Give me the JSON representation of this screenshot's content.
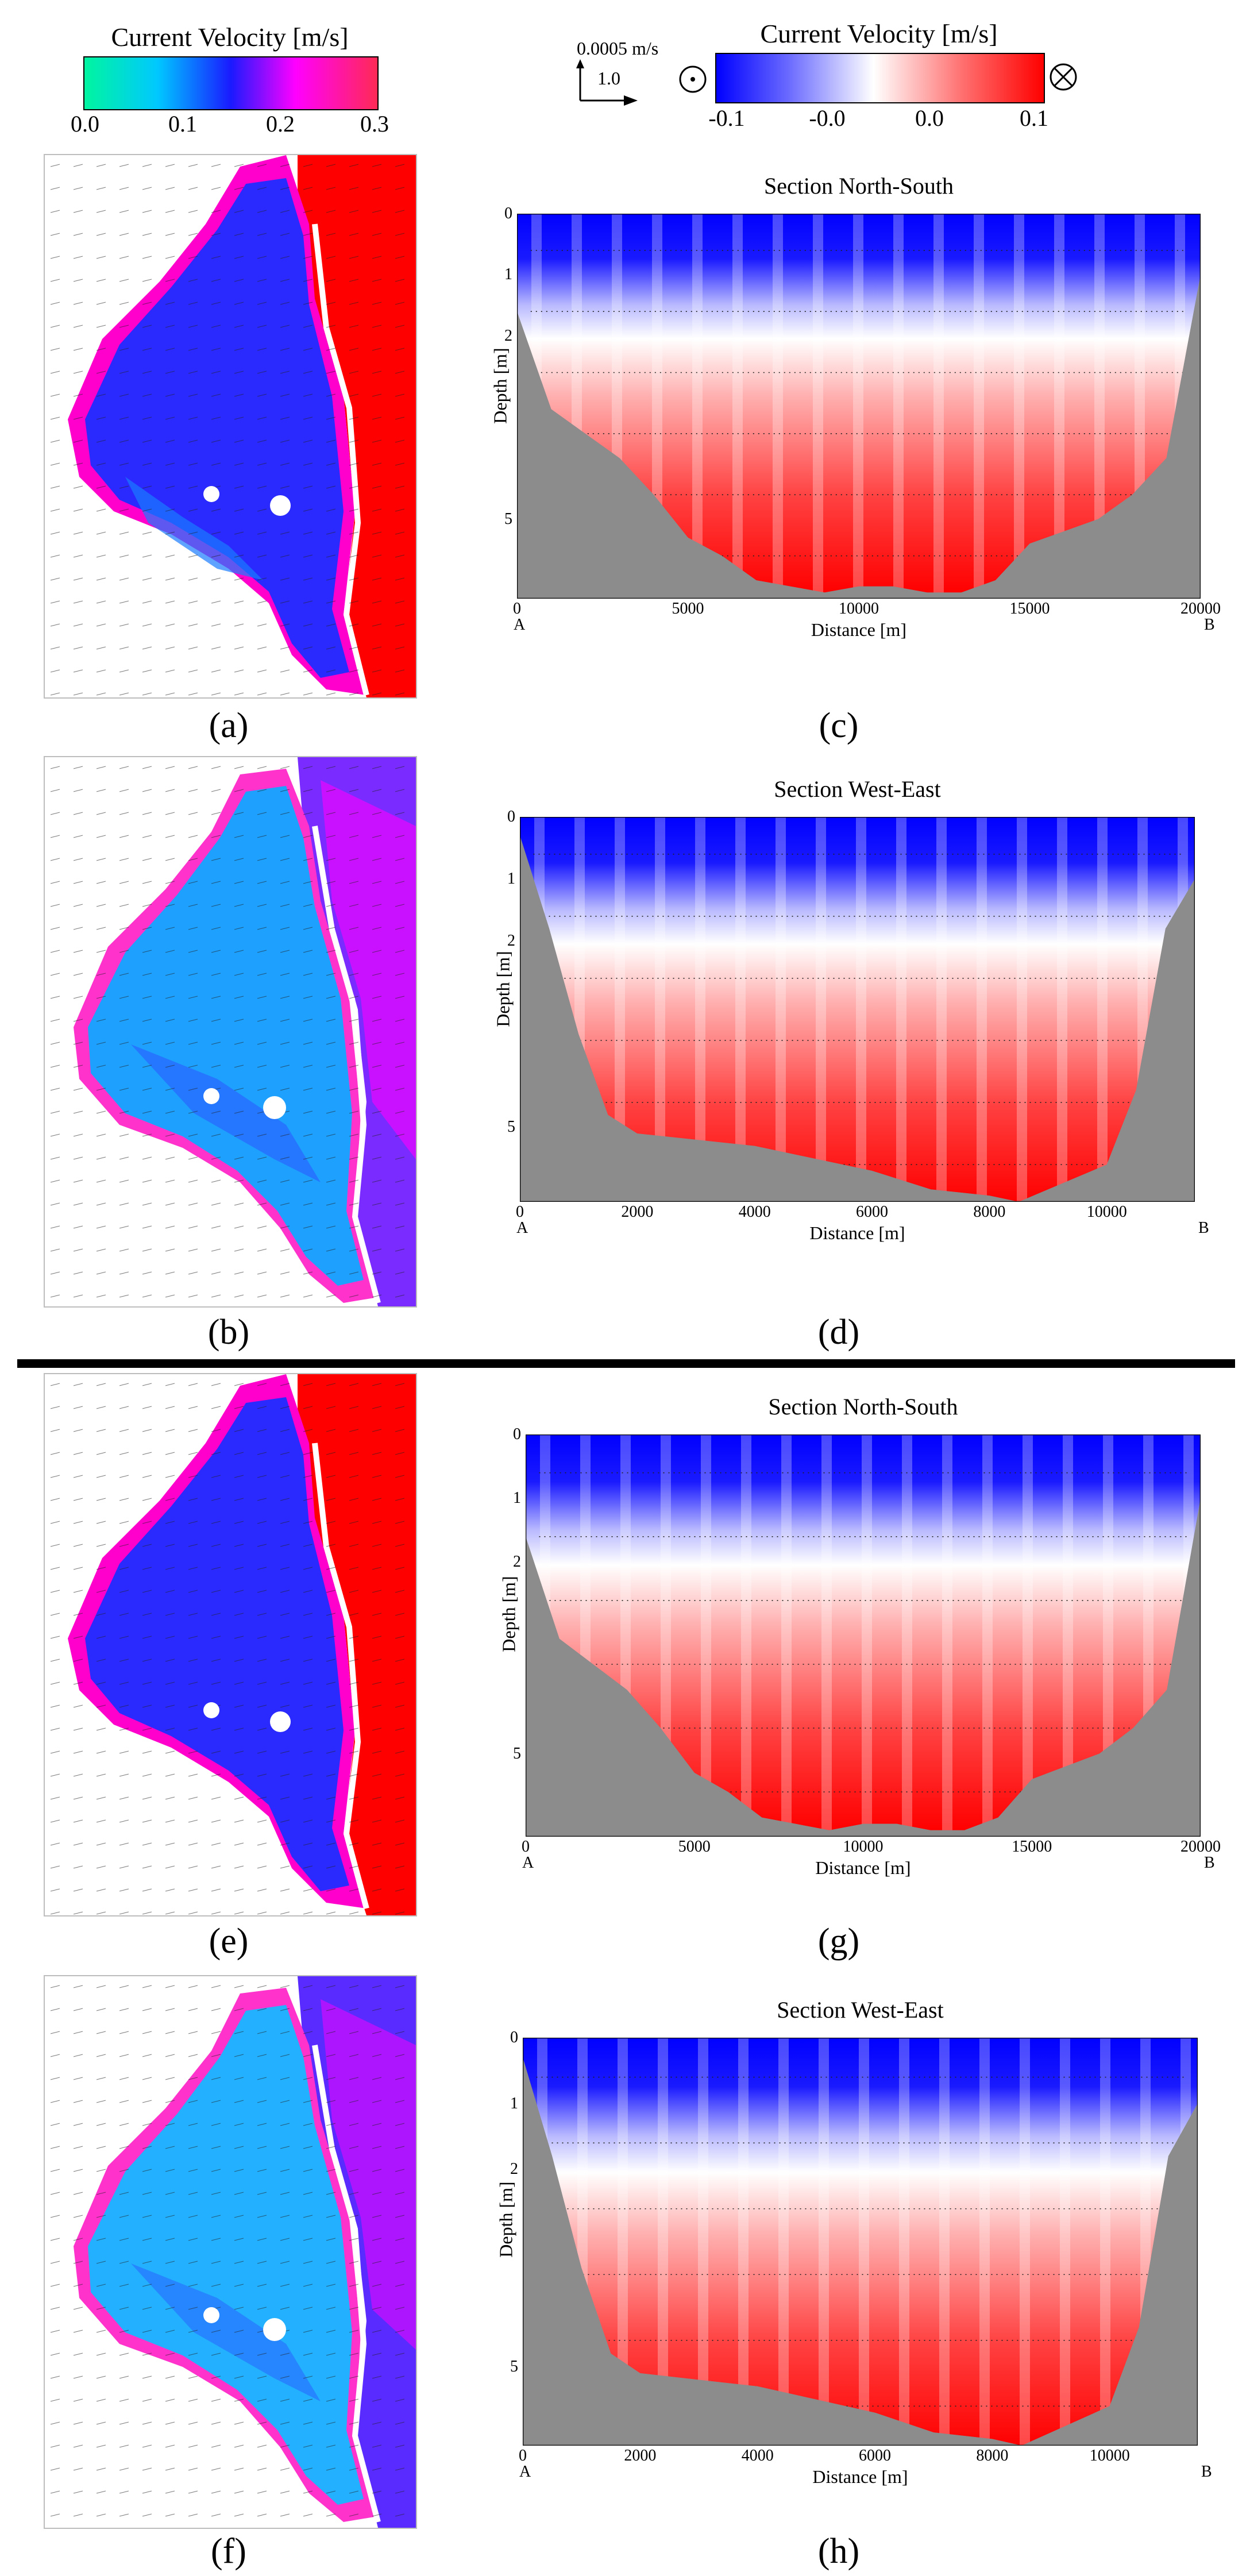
{
  "legend_left": {
    "title": "Current Velocity [m/s]",
    "ticks": [
      "0.0",
      "0.1",
      "0.2",
      "0.3"
    ],
    "colors": [
      "#00f5a0",
      "#00c8ff",
      "#1a1aff",
      "#ff00ff",
      "#ff2a55"
    ]
  },
  "legend_right": {
    "title": "Current Velocity [m/s]",
    "ticks": [
      "-0.1",
      "-0.0",
      "0.0",
      "0.1"
    ],
    "colors": [
      "#0000ff",
      "#ffffff",
      "#ff0000"
    ],
    "out_of_page_icon": "dot-circle-icon",
    "into_page_icon": "cross-circle-icon"
  },
  "vector_scale": {
    "horizontal": "0.0005",
    "unit": "m/s",
    "vertical": "1.0"
  },
  "panel_labels": {
    "a": "(a)",
    "b": "(b)",
    "c": "(c)",
    "d": "(d)",
    "e": "(e)",
    "f": "(f)",
    "g": "(g)",
    "h": "(h)"
  },
  "chart_data": [
    {
      "id": "c",
      "type": "heatmap",
      "title": "Section North-South",
      "xlabel": "Distance [m]",
      "ylabel": "Depth [m]",
      "xlim": [
        0,
        20000
      ],
      "ylim": [
        6.3,
        0
      ],
      "xticks": [
        "0",
        "5000",
        "10000",
        "15000",
        "20000"
      ],
      "yticks": [
        "0",
        "1",
        "2",
        "5"
      ],
      "start_label": "A",
      "end_label": "B",
      "bottom_profile_x": [
        0,
        1000,
        2000,
        3000,
        4000,
        5000,
        6000,
        7000,
        8000,
        9000,
        10000,
        11000,
        12000,
        13000,
        14000,
        15000,
        16000,
        17000,
        18000,
        19000,
        20000
      ],
      "bottom_profile_depth": [
        1.6,
        3.2,
        3.6,
        4.0,
        4.6,
        5.3,
        5.6,
        6.0,
        6.1,
        6.2,
        6.1,
        6.1,
        6.2,
        6.2,
        6.0,
        5.4,
        5.2,
        5.0,
        4.6,
        4.0,
        1.0
      ]
    },
    {
      "id": "d",
      "type": "heatmap",
      "title": "Section West-East",
      "xlabel": "Distance [m]",
      "ylabel": "Depth [m]",
      "xlim": [
        0,
        11500
      ],
      "ylim": [
        6.2,
        0
      ],
      "xticks": [
        "0",
        "2000",
        "4000",
        "6000",
        "8000",
        "10000"
      ],
      "yticks": [
        "0",
        "1",
        "2",
        "5"
      ],
      "start_label": "A",
      "end_label": "B",
      "bottom_profile_x": [
        0,
        500,
        1000,
        1500,
        2000,
        3000,
        4000,
        5000,
        6000,
        7000,
        8000,
        8500,
        9000,
        10000,
        10500,
        11000,
        11500
      ],
      "bottom_profile_depth": [
        0.3,
        1.8,
        3.5,
        4.8,
        5.1,
        5.2,
        5.3,
        5.5,
        5.7,
        6.0,
        6.1,
        6.2,
        6.0,
        5.6,
        4.4,
        1.8,
        1.0
      ]
    },
    {
      "id": "g",
      "type": "heatmap",
      "title": "Section North-South",
      "xlabel": "Distance [m]",
      "ylabel": "Depth [m]",
      "xlim": [
        0,
        20000
      ],
      "ylim": [
        6.3,
        0
      ],
      "xticks": [
        "0",
        "5000",
        "10000",
        "15000",
        "20000"
      ],
      "yticks": [
        "0",
        "1",
        "2",
        "5"
      ],
      "start_label": "A",
      "end_label": "B",
      "bottom_profile_x": [
        0,
        1000,
        2000,
        3000,
        4000,
        5000,
        6000,
        7000,
        8000,
        9000,
        10000,
        11000,
        12000,
        13000,
        14000,
        15000,
        16000,
        17000,
        18000,
        19000,
        20000
      ],
      "bottom_profile_depth": [
        1.6,
        3.2,
        3.6,
        4.0,
        4.6,
        5.3,
        5.6,
        6.0,
        6.1,
        6.2,
        6.1,
        6.1,
        6.2,
        6.2,
        6.0,
        5.4,
        5.2,
        5.0,
        4.6,
        4.0,
        1.0
      ]
    },
    {
      "id": "h",
      "type": "heatmap",
      "title": "Section West-East",
      "xlabel": "Distance [m]",
      "ylabel": "Depth [m]",
      "xlim": [
        0,
        11500
      ],
      "ylim": [
        6.2,
        0
      ],
      "xticks": [
        "0",
        "2000",
        "4000",
        "6000",
        "8000",
        "10000"
      ],
      "yticks": [
        "0",
        "1",
        "2",
        "5"
      ],
      "start_label": "A",
      "end_label": "B",
      "bottom_profile_x": [
        0,
        500,
        1000,
        1500,
        2000,
        3000,
        4000,
        5000,
        6000,
        7000,
        8000,
        8500,
        9000,
        10000,
        10500,
        11000,
        11500
      ],
      "bottom_profile_depth": [
        0.3,
        1.8,
        3.5,
        4.8,
        5.1,
        5.2,
        5.3,
        5.5,
        5.7,
        6.0,
        6.1,
        6.2,
        6.0,
        5.6,
        4.4,
        1.8,
        1.0
      ]
    }
  ]
}
